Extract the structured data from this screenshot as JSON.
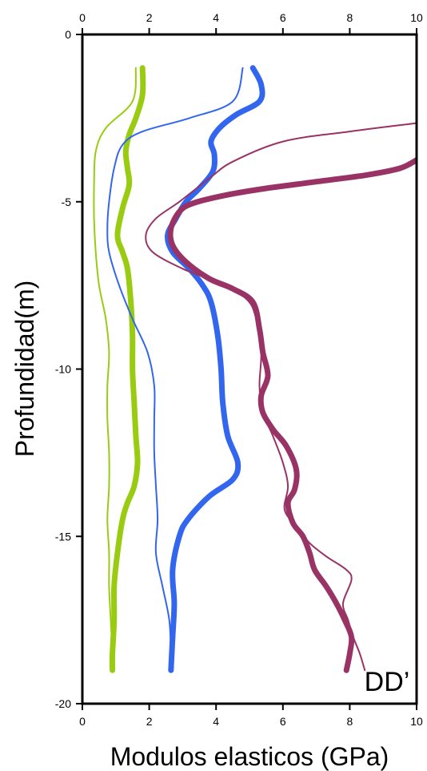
{
  "chart_data": {
    "type": "line",
    "title": "",
    "xlabel": "Modulos elasticos (GPa)",
    "ylabel": "Profundidad(m)",
    "xlim": [
      0,
      10
    ],
    "ylim": [
      -20,
      0
    ],
    "x_ticks": [
      0,
      2,
      4,
      6,
      8,
      10
    ],
    "y_ticks": [
      0,
      -5,
      -10,
      -15,
      -20
    ],
    "grid": false,
    "legend": "none",
    "annotation": "DD’",
    "series": [
      {
        "color": "#99cc11",
        "weight": "thin",
        "points": [
          [
            1.6,
            -1
          ],
          [
            1.5,
            -2
          ],
          [
            0.7,
            -2.8
          ],
          [
            0.4,
            -3.5
          ],
          [
            0.35,
            -4.5
          ],
          [
            0.35,
            -5.5
          ],
          [
            0.4,
            -6.5
          ],
          [
            0.5,
            -7.5
          ],
          [
            0.7,
            -8.5
          ],
          [
            0.8,
            -9.5
          ],
          [
            0.75,
            -10.5
          ],
          [
            0.75,
            -11.5
          ],
          [
            0.8,
            -12.5
          ],
          [
            0.8,
            -13.5
          ],
          [
            0.75,
            -14.5
          ],
          [
            0.8,
            -15.5
          ],
          [
            0.8,
            -16.5
          ],
          [
            0.85,
            -17.5
          ],
          [
            0.9,
            -18.5
          ],
          [
            0.9,
            -19
          ]
        ]
      },
      {
        "color": "#99cc11",
        "weight": "thick",
        "points": [
          [
            1.8,
            -1
          ],
          [
            1.8,
            -1.8
          ],
          [
            1.6,
            -2.5
          ],
          [
            1.4,
            -3
          ],
          [
            1.3,
            -3.5
          ],
          [
            1.35,
            -4
          ],
          [
            1.4,
            -4.5
          ],
          [
            1.2,
            -5.2
          ],
          [
            1.05,
            -6
          ],
          [
            1.2,
            -6.5
          ],
          [
            1.35,
            -7
          ],
          [
            1.45,
            -8
          ],
          [
            1.5,
            -9
          ],
          [
            1.5,
            -10
          ],
          [
            1.55,
            -11
          ],
          [
            1.6,
            -12
          ],
          [
            1.65,
            -12.8
          ],
          [
            1.55,
            -13.5
          ],
          [
            1.35,
            -14
          ],
          [
            1.2,
            -14.5
          ],
          [
            1.05,
            -15.5
          ],
          [
            0.95,
            -16.5
          ],
          [
            0.95,
            -17.5
          ],
          [
            0.9,
            -18.5
          ],
          [
            0.9,
            -19
          ]
        ]
      },
      {
        "color": "#3366ee",
        "weight": "thin",
        "points": [
          [
            4.8,
            -1
          ],
          [
            4.5,
            -2
          ],
          [
            3.2,
            -2.5
          ],
          [
            1.8,
            -2.9
          ],
          [
            1.2,
            -3.3
          ],
          [
            0.95,
            -4
          ],
          [
            0.8,
            -5
          ],
          [
            0.75,
            -5.8
          ],
          [
            0.8,
            -6.5
          ],
          [
            1.1,
            -7.5
          ],
          [
            1.5,
            -8.5
          ],
          [
            1.95,
            -9.5
          ],
          [
            2.15,
            -10.5
          ],
          [
            2.15,
            -11.5
          ],
          [
            2.15,
            -12.5
          ],
          [
            2.2,
            -13.5
          ],
          [
            2.25,
            -14.5
          ],
          [
            2.2,
            -15.5
          ],
          [
            2.4,
            -16.5
          ],
          [
            2.6,
            -17.5
          ],
          [
            2.65,
            -18.5
          ],
          [
            2.65,
            -19
          ]
        ]
      },
      {
        "color": "#3366ee",
        "weight": "thick",
        "points": [
          [
            5.1,
            -1
          ],
          [
            5.35,
            -1.5
          ],
          [
            5.3,
            -2
          ],
          [
            4.6,
            -2.4
          ],
          [
            4.1,
            -2.8
          ],
          [
            3.85,
            -3.2
          ],
          [
            3.95,
            -3.6
          ],
          [
            3.9,
            -4.1
          ],
          [
            3.5,
            -4.6
          ],
          [
            3.1,
            -5
          ],
          [
            2.8,
            -5.5
          ],
          [
            2.55,
            -6
          ],
          [
            2.7,
            -6.5
          ],
          [
            3.2,
            -7
          ],
          [
            3.6,
            -7.5
          ],
          [
            3.85,
            -8
          ],
          [
            4.05,
            -9
          ],
          [
            4.15,
            -10
          ],
          [
            4.2,
            -11
          ],
          [
            4.35,
            -12
          ],
          [
            4.65,
            -12.8
          ],
          [
            4.5,
            -13.3
          ],
          [
            3.8,
            -13.8
          ],
          [
            3.15,
            -14.5
          ],
          [
            2.9,
            -15
          ],
          [
            2.7,
            -16
          ],
          [
            2.75,
            -17
          ],
          [
            2.7,
            -18
          ],
          [
            2.65,
            -19
          ]
        ]
      },
      {
        "color": "#993366",
        "weight": "thin",
        "points": [
          [
            10,
            -2.65
          ],
          [
            8,
            -2.9
          ],
          [
            6,
            -3.2
          ],
          [
            4.5,
            -3.8
          ],
          [
            3.8,
            -4.3
          ],
          [
            2.9,
            -5
          ],
          [
            2.2,
            -5.5
          ],
          [
            1.9,
            -6
          ],
          [
            2.1,
            -6.5
          ],
          [
            3.0,
            -7
          ],
          [
            4.0,
            -7.4
          ],
          [
            4.9,
            -7.9
          ],
          [
            5.2,
            -8.5
          ],
          [
            5.35,
            -9.5
          ],
          [
            5.3,
            -10.5
          ],
          [
            5.4,
            -11.3
          ],
          [
            5.7,
            -12
          ],
          [
            6.0,
            -12.8
          ],
          [
            6.15,
            -13.5
          ],
          [
            6.05,
            -14.2
          ],
          [
            6.4,
            -14.7
          ],
          [
            6.8,
            -15.2
          ],
          [
            7.3,
            -15.6
          ],
          [
            7.9,
            -16
          ],
          [
            8.05,
            -16.3
          ],
          [
            7.8,
            -17
          ],
          [
            7.95,
            -17.5
          ],
          [
            8.1,
            -18
          ],
          [
            8.3,
            -18.5
          ],
          [
            8.45,
            -19
          ]
        ]
      },
      {
        "color": "#993366",
        "weight": "thick",
        "points": [
          [
            10,
            -3.75
          ],
          [
            9.5,
            -4
          ],
          [
            8.5,
            -4.2
          ],
          [
            7,
            -4.4
          ],
          [
            5.5,
            -4.6
          ],
          [
            4.3,
            -4.8
          ],
          [
            3.3,
            -5.05
          ],
          [
            2.9,
            -5.3
          ],
          [
            2.65,
            -5.8
          ],
          [
            2.7,
            -6.3
          ],
          [
            3.1,
            -6.8
          ],
          [
            3.8,
            -7.3
          ],
          [
            4.5,
            -7.6
          ],
          [
            5.1,
            -8
          ],
          [
            5.3,
            -8.8
          ],
          [
            5.4,
            -9.5
          ],
          [
            5.55,
            -10.2
          ],
          [
            5.35,
            -10.8
          ],
          [
            5.4,
            -11.3
          ],
          [
            5.7,
            -11.8
          ],
          [
            6.1,
            -12.3
          ],
          [
            6.4,
            -13
          ],
          [
            6.35,
            -13.6
          ],
          [
            6.15,
            -14
          ],
          [
            6.3,
            -14.6
          ],
          [
            6.6,
            -15
          ],
          [
            6.8,
            -15.5
          ],
          [
            6.95,
            -16
          ],
          [
            7.3,
            -16.5
          ],
          [
            7.6,
            -17
          ],
          [
            7.85,
            -17.5
          ],
          [
            8.05,
            -18
          ],
          [
            8.0,
            -18.5
          ],
          [
            7.9,
            -19
          ]
        ]
      }
    ]
  }
}
